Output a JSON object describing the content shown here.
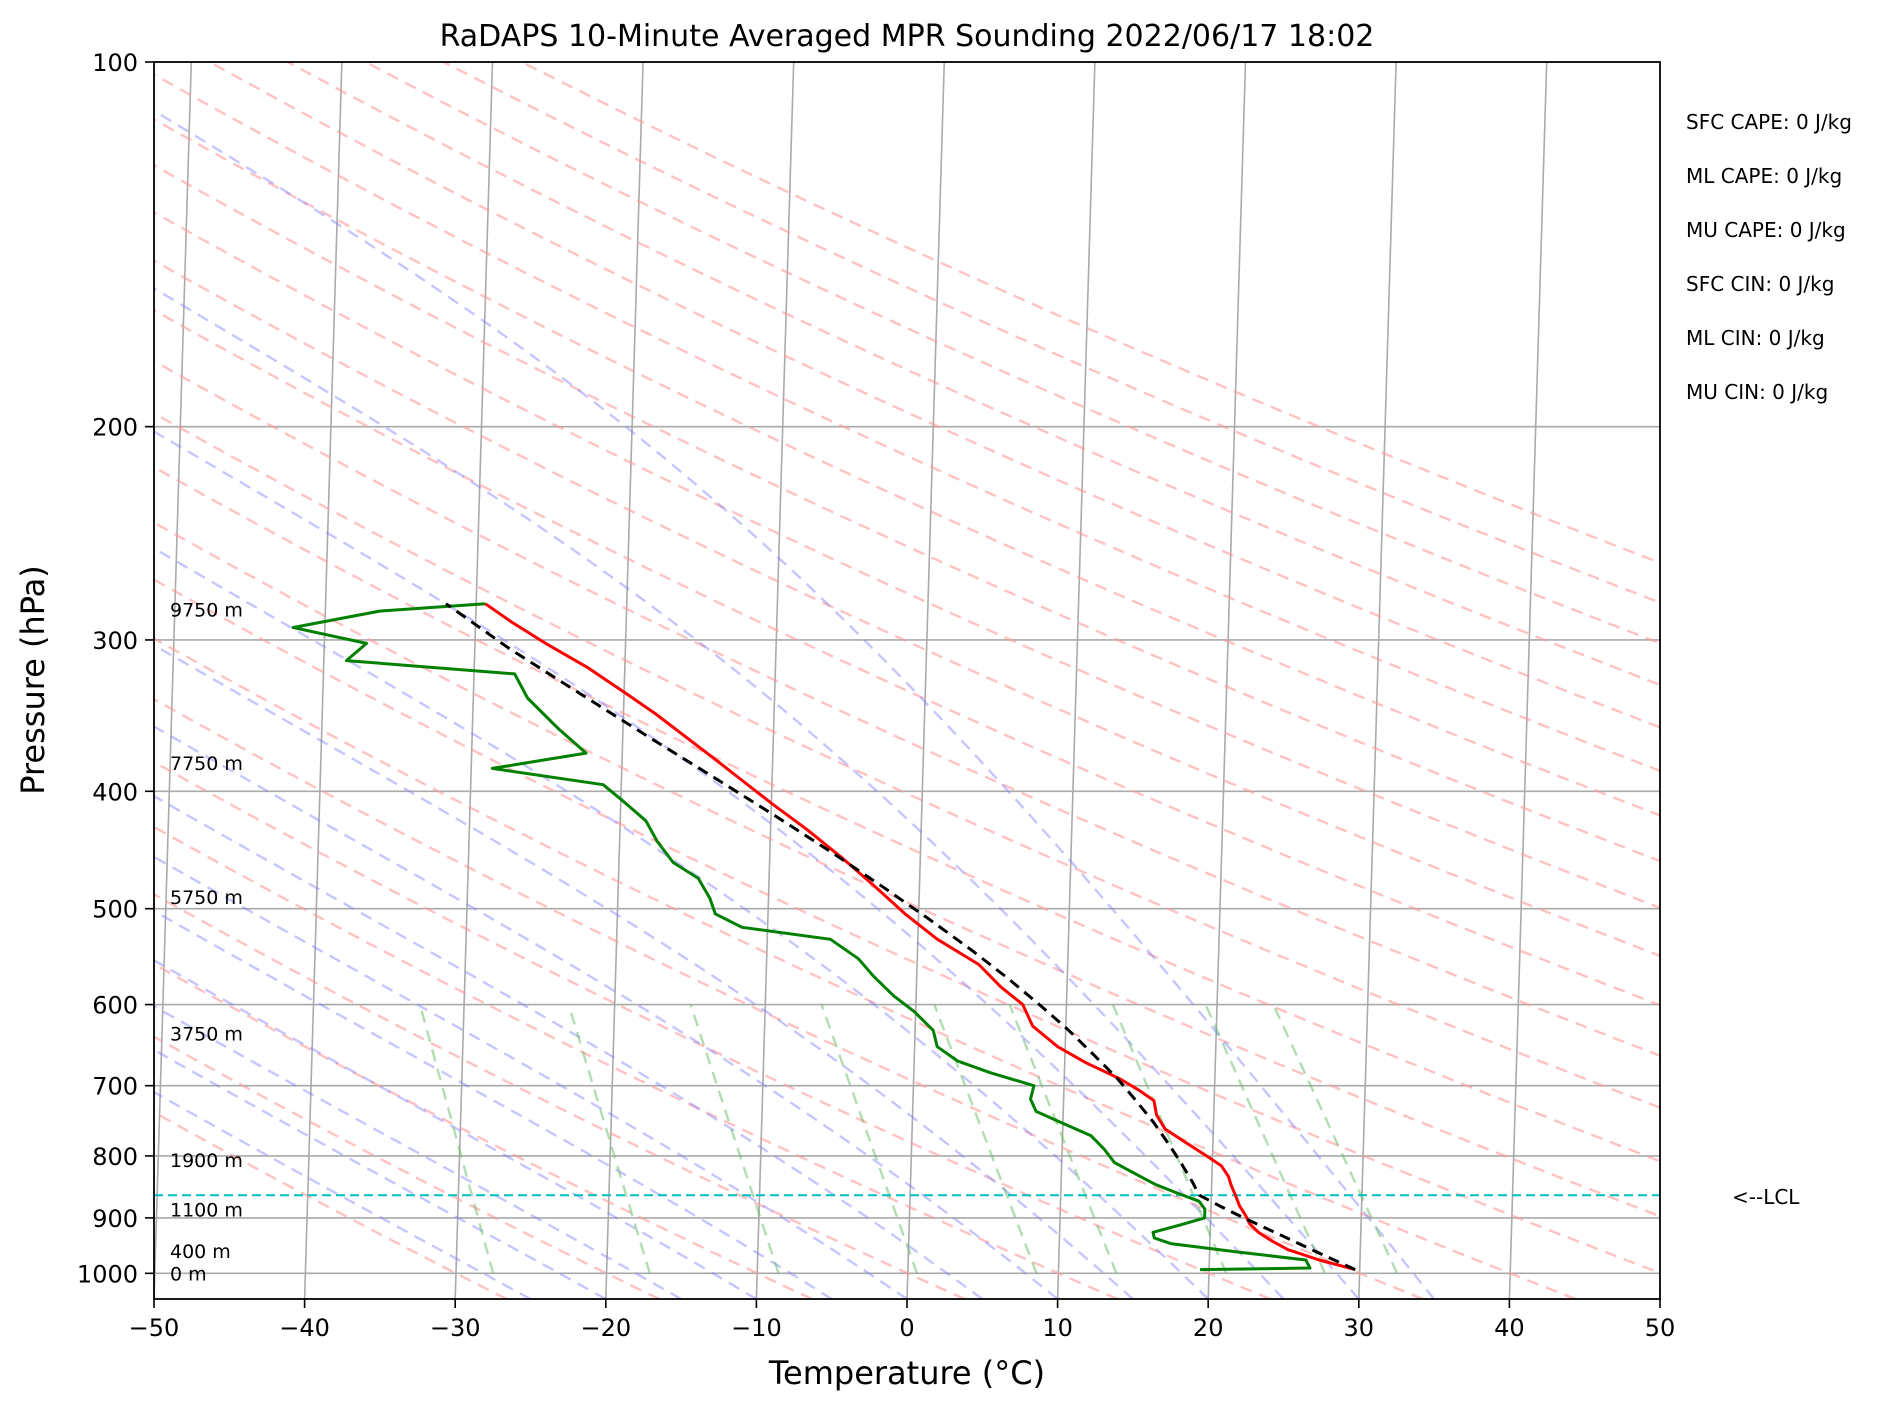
{
  "chart_data": {
    "type": "line",
    "title": "RaDAPS 10-Minute Averaged MPR Sounding 2022/06/17 18:02",
    "xlabel": "Temperature (°C)",
    "ylabel": "Pressure (hPa)",
    "xlim": [
      -50,
      50
    ],
    "ylim": [
      1050,
      100
    ],
    "y_scale": "log",
    "grid": true,
    "x_ticks": [
      -50,
      -40,
      -30,
      -20,
      -10,
      0,
      10,
      20,
      30,
      40,
      50
    ],
    "x_tick_labels": [
      "−50",
      "−40",
      "−30",
      "−20",
      "−10",
      "0",
      "10",
      "20",
      "30",
      "40",
      "50"
    ],
    "y_ticks": [
      100,
      200,
      300,
      400,
      500,
      600,
      700,
      800,
      900,
      1000
    ],
    "y_tick_labels": [
      "100",
      "200",
      "300",
      "400",
      "500",
      "600",
      "700",
      "800",
      "900",
      "1000"
    ],
    "skew": "skew-T log-P",
    "series": [
      {
        "key": "temperature",
        "color": "#ff0000",
        "points": [
          [
            993,
            29.7
          ],
          [
            975,
            27.3
          ],
          [
            956,
            25.2
          ],
          [
            940,
            24.1
          ],
          [
            925,
            23.2
          ],
          [
            910,
            22.6
          ],
          [
            895,
            22.3
          ],
          [
            880,
            21.9
          ],
          [
            862,
            21.6
          ],
          [
            846,
            21.3
          ],
          [
            832,
            21.1
          ],
          [
            815,
            20.6
          ],
          [
            800,
            19.6
          ],
          [
            780,
            18.2
          ],
          [
            760,
            16.8
          ],
          [
            740,
            16.2
          ],
          [
            720,
            16.0
          ],
          [
            705,
            14.9
          ],
          [
            690,
            13.6
          ],
          [
            670,
            11.4
          ],
          [
            650,
            9.5
          ],
          [
            625,
            7.8
          ],
          [
            600,
            7.1
          ],
          [
            580,
            5.6
          ],
          [
            556,
            4.1
          ],
          [
            530,
            1.3
          ],
          [
            505,
            -0.9
          ],
          [
            480,
            -2.9
          ],
          [
            455,
            -5.1
          ],
          [
            430,
            -7.6
          ],
          [
            410,
            -9.9
          ],
          [
            390,
            -12.2
          ],
          [
            375,
            -14.0
          ],
          [
            360,
            -15.9
          ],
          [
            345,
            -17.9
          ],
          [
            330,
            -20.2
          ],
          [
            316,
            -22.5
          ],
          [
            302,
            -25.3
          ],
          [
            290,
            -27.6
          ],
          [
            280,
            -29.4
          ]
        ]
      },
      {
        "key": "dewpoint",
        "color": "#008000",
        "points": [
          [
            993,
            19.4
          ],
          [
            990,
            26.7
          ],
          [
            975,
            26.4
          ],
          [
            960,
            21.8
          ],
          [
            945,
            17.4
          ],
          [
            935,
            16.3
          ],
          [
            925,
            16.2
          ],
          [
            912,
            18.0
          ],
          [
            900,
            19.6
          ],
          [
            885,
            19.6
          ],
          [
            872,
            19.2
          ],
          [
            860,
            17.9
          ],
          [
            845,
            16.3
          ],
          [
            830,
            15.1
          ],
          [
            810,
            13.5
          ],
          [
            790,
            12.8
          ],
          [
            770,
            11.9
          ],
          [
            750,
            9.8
          ],
          [
            735,
            8.2
          ],
          [
            718,
            7.8
          ],
          [
            700,
            8.0
          ],
          [
            683,
            5.1
          ],
          [
            668,
            2.9
          ],
          [
            650,
            1.5
          ],
          [
            630,
            1.2
          ],
          [
            608,
            -0.1
          ],
          [
            590,
            -1.5
          ],
          [
            568,
            -2.9
          ],
          [
            550,
            -3.9
          ],
          [
            530,
            -5.8
          ],
          [
            518,
            -11.7
          ],
          [
            505,
            -13.5
          ],
          [
            490,
            -13.9
          ],
          [
            472,
            -14.7
          ],
          [
            458,
            -16.4
          ],
          [
            440,
            -17.5
          ],
          [
            423,
            -18.3
          ],
          [
            408,
            -19.8
          ],
          [
            395,
            -21.2
          ],
          [
            383,
            -28.6
          ],
          [
            372,
            -22.4
          ],
          [
            355,
            -24.3
          ],
          [
            335,
            -26.4
          ],
          [
            320,
            -27.3
          ],
          [
            312,
            -38.5
          ],
          [
            302,
            -37.2
          ],
          [
            293,
            -42.1
          ],
          [
            284,
            -36.4
          ],
          [
            280,
            -29.4
          ]
        ]
      },
      {
        "key": "parcel",
        "color": "#000000",
        "dashed": true,
        "points": [
          [
            993,
            29.7
          ],
          [
            960,
            27.1
          ],
          [
            930,
            24.7
          ],
          [
            900,
            22.2
          ],
          [
            880,
            20.6
          ],
          [
            862,
            19.2
          ],
          [
            840,
            18.7
          ],
          [
            810,
            17.9
          ],
          [
            780,
            17.0
          ],
          [
            750,
            16.0
          ],
          [
            720,
            14.8
          ],
          [
            690,
            13.5
          ],
          [
            660,
            11.9
          ],
          [
            630,
            10.2
          ],
          [
            600,
            8.2
          ],
          [
            570,
            6.0
          ],
          [
            540,
            3.5
          ],
          [
            510,
            0.7
          ],
          [
            480,
            -2.4
          ],
          [
            450,
            -5.8
          ],
          [
            420,
            -9.6
          ],
          [
            390,
            -13.8
          ],
          [
            360,
            -18.4
          ],
          [
            330,
            -23.3
          ],
          [
            305,
            -27.7
          ],
          [
            280,
            -32.0
          ]
        ]
      }
    ],
    "lcl": {
      "pressure": 862,
      "label": "<--LCL",
      "color": "#00bfbf"
    },
    "height_labels": [
      {
        "p": 1000,
        "text": "0 m"
      },
      {
        "p": 958,
        "text": "400 m"
      },
      {
        "p": 886,
        "text": "1100 m"
      },
      {
        "p": 806,
        "text": "1900 m"
      },
      {
        "p": 634,
        "text": "3750 m"
      },
      {
        "p": 489,
        "text": "5750 m"
      },
      {
        "p": 379,
        "text": "7750 m"
      },
      {
        "p": 283,
        "text": "9750 m"
      }
    ],
    "indices": [
      "SFC CAPE: 0 J/kg",
      "ML CAPE: 0 J/kg",
      "MU CAPE: 0 J/kg",
      "SFC CIN: 0 J/kg",
      "ML CIN: 0 J/kg",
      "MU CIN: 0 J/kg"
    ]
  }
}
